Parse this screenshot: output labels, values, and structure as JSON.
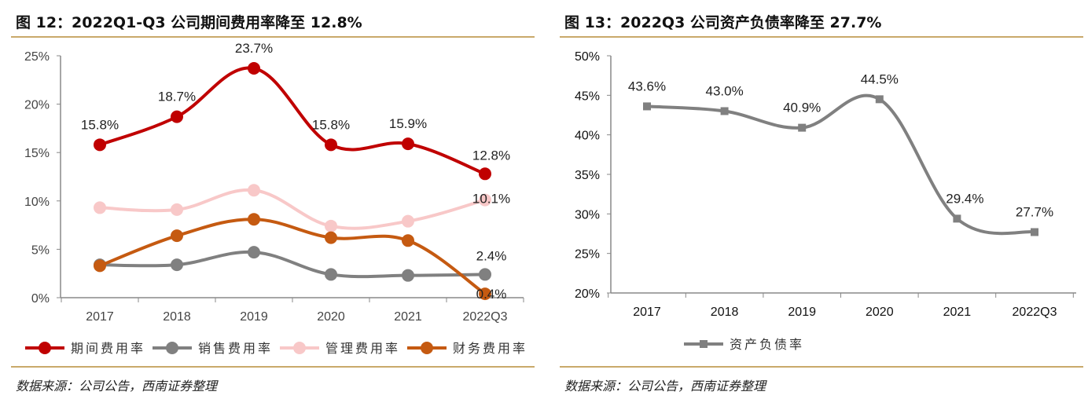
{
  "chart_data": [
    {
      "type": "line",
      "title": "图 12：2022Q1-Q3 公司期间费用率降至 12.8%",
      "source": "数据来源：公司公告，西南证券整理",
      "categories": [
        "2017",
        "2018",
        "2019",
        "2020",
        "2021",
        "2022Q3"
      ],
      "ylim": [
        0,
        25
      ],
      "yticks": [
        "0%",
        "5%",
        "10%",
        "15%",
        "20%",
        "25%"
      ],
      "legend_position": "bottom",
      "smooth": true,
      "series": [
        {
          "name": "期间费用率",
          "color": "#c00000",
          "values": [
            15.8,
            18.7,
            23.7,
            15.8,
            15.9,
            12.8
          ],
          "labels": [
            "15.8%",
            "18.7%",
            "23.7%",
            "15.8%",
            "15.9%",
            "12.8%"
          ]
        },
        {
          "name": "销售费用率",
          "color": "#808080",
          "values": [
            3.4,
            3.4,
            4.7,
            2.4,
            2.3,
            2.4
          ],
          "labels": [
            "",
            "",
            "",
            "",
            "",
            "2.4%"
          ]
        },
        {
          "name": "管理费用率",
          "color": "#f8c8c8",
          "values": [
            9.3,
            9.1,
            11.1,
            7.4,
            7.9,
            10.1
          ],
          "labels": [
            "",
            "",
            "",
            "",
            "",
            "10.1%"
          ]
        },
        {
          "name": "财务费用率",
          "color": "#c55a11",
          "values": [
            3.3,
            6.4,
            8.1,
            6.2,
            5.9,
            0.4
          ],
          "labels": [
            "",
            "",
            "",
            "",
            "",
            "0.4%"
          ]
        }
      ]
    },
    {
      "type": "line",
      "title": "图 13：2022Q3 公司资产负债率降至 27.7%",
      "source": "数据来源：公司公告，西南证券整理",
      "categories": [
        "2017",
        "2018",
        "2019",
        "2020",
        "2021",
        "2022Q3"
      ],
      "ylim": [
        20,
        50
      ],
      "yticks": [
        "20%",
        "25%",
        "30%",
        "35%",
        "40%",
        "45%",
        "50%"
      ],
      "legend_position": "bottom",
      "smooth": true,
      "series": [
        {
          "name": "资产负债率",
          "color": "#808080",
          "marker": "square",
          "values": [
            43.6,
            43.0,
            40.9,
            44.5,
            29.4,
            27.7
          ],
          "labels": [
            "43.6%",
            "43.0%",
            "40.9%",
            "44.5%",
            "29.4%",
            "27.7%"
          ]
        }
      ]
    }
  ]
}
